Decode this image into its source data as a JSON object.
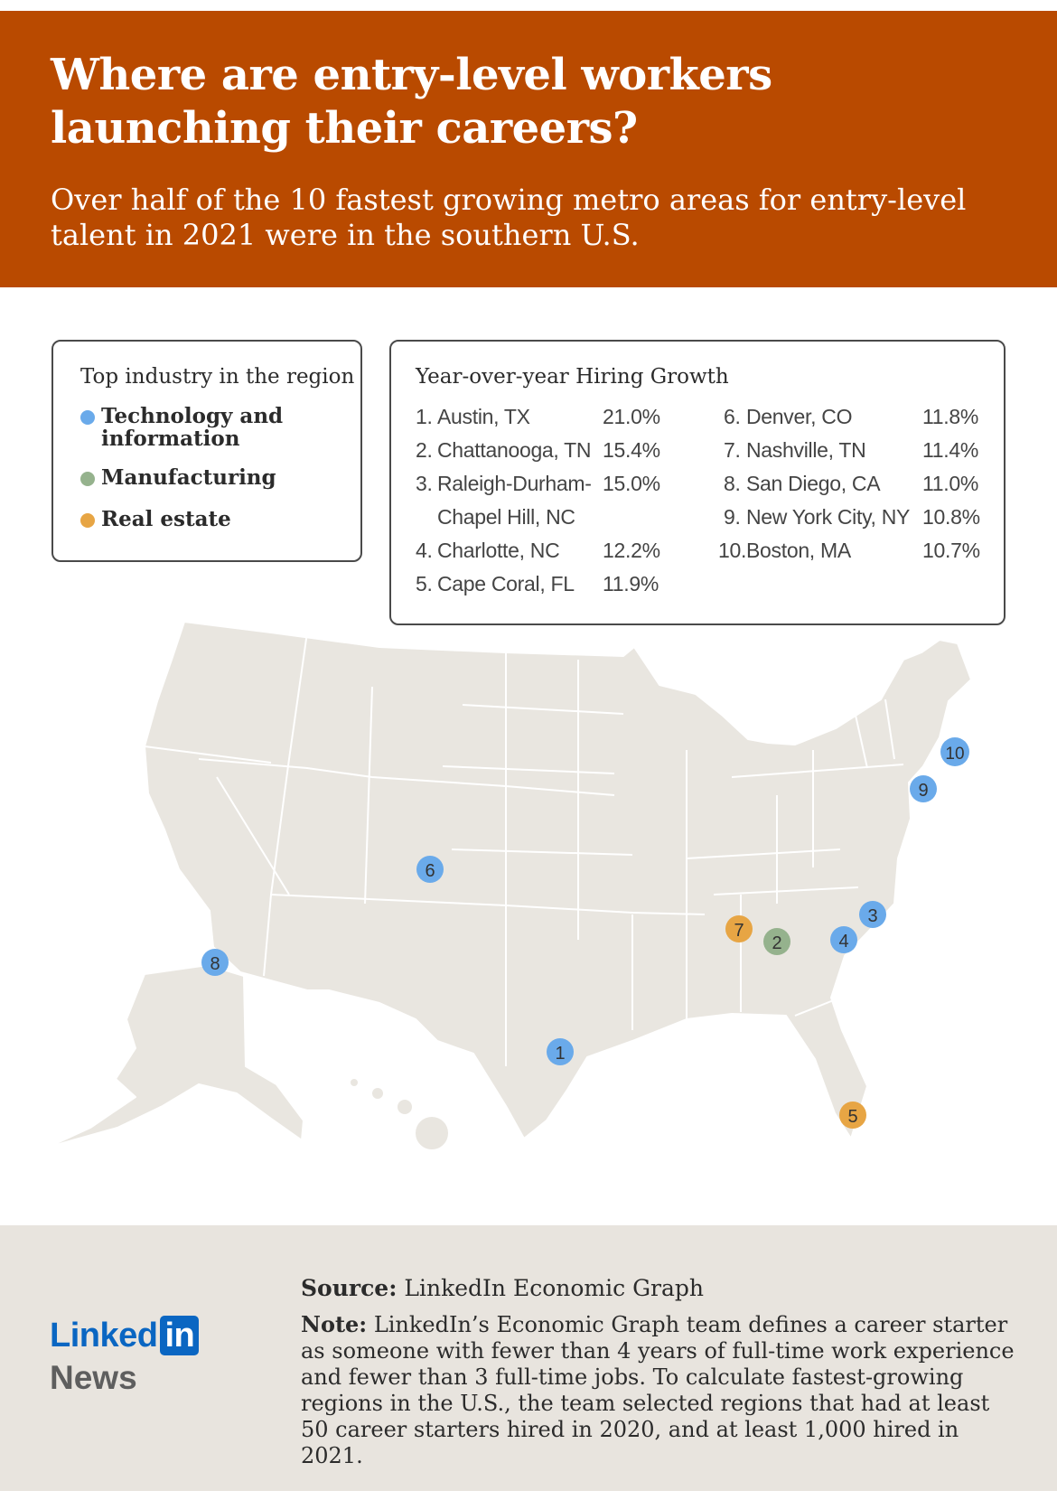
{
  "header": {
    "title": "Where are entry-level workers launching their careers?",
    "subtitle": "Over half of the 10 fastest growing metro areas for entry-level talent in 2021 were in the southern U.S."
  },
  "legend": {
    "title": "Top industry in the region",
    "items": [
      {
        "label": "Technology and information",
        "color": "#6aaaea"
      },
      {
        "label": "Manufacturing",
        "color": "#95b28d"
      },
      {
        "label": "Real estate",
        "color": "#e7a544"
      }
    ]
  },
  "growth_table": {
    "title": "Year-over-year Hiring Growth",
    "rows": [
      {
        "rank": "1.",
        "city": "Austin, TX",
        "growth": "21.0%"
      },
      {
        "rank": "2.",
        "city": "Chattanooga, TN",
        "growth": "15.4%"
      },
      {
        "rank": "3.",
        "city": "Raleigh-Durham-",
        "city2": "Chapel Hill, NC",
        "growth": "15.0%"
      },
      {
        "rank": "4.",
        "city": "Charlotte, NC",
        "growth": "12.2%"
      },
      {
        "rank": "5.",
        "city": "Cape Coral, FL",
        "growth": "11.9%"
      },
      {
        "rank": "6.",
        "city": "Denver, CO",
        "growth": "11.8%"
      },
      {
        "rank": "7.",
        "city": "Nashville, TN",
        "growth": "11.4%"
      },
      {
        "rank": "8.",
        "city": "San Diego, CA",
        "growth": "11.0%"
      },
      {
        "rank": "9.",
        "city": "New York City, NY",
        "growth": "10.8%"
      },
      {
        "rank": "10.",
        "city": "Boston, MA",
        "growth": "10.7%"
      }
    ]
  },
  "map": {
    "markers": [
      {
        "label": "1",
        "city": "Austin, TX",
        "industry": "Technology and information",
        "color": "#6aaaea"
      },
      {
        "label": "2",
        "city": "Chattanooga, TN",
        "industry": "Manufacturing",
        "color": "#95b28d"
      },
      {
        "label": "3",
        "city": "Raleigh-Durham-Chapel Hill, NC",
        "industry": "Technology and information",
        "color": "#6aaaea"
      },
      {
        "label": "4",
        "city": "Charlotte, NC",
        "industry": "Technology and information",
        "color": "#6aaaea"
      },
      {
        "label": "5",
        "city": "Cape Coral, FL",
        "industry": "Real estate",
        "color": "#e7a544"
      },
      {
        "label": "6",
        "city": "Denver, CO",
        "industry": "Technology and information",
        "color": "#6aaaea"
      },
      {
        "label": "7",
        "city": "Nashville, TN",
        "industry": "Real estate",
        "color": "#e7a544"
      },
      {
        "label": "8",
        "city": "San Diego, CA",
        "industry": "Technology and information",
        "color": "#6aaaea"
      },
      {
        "label": "9",
        "city": "New York City, NY",
        "industry": "Technology and information",
        "color": "#6aaaea"
      },
      {
        "label": "10",
        "city": "Boston, MA",
        "industry": "Technology and information",
        "color": "#6aaaea"
      }
    ],
    "land_color": "#e9e6e0",
    "border_color": "#ffffff"
  },
  "footer": {
    "source_label": "Source:",
    "source_text": "LinkedIn Economic Graph",
    "note_label": "Note:",
    "note_text": "LinkedIn’s Economic Graph team defines a career starter as someone with fewer than 4 years of full-time work experience and fewer than 3 full-time jobs. To calculate fastest-growing regions in the U.S., the team selected regions that had at least 50 career starters hired in 2020, and at least 1,000 hired in 2021.",
    "logo_linked": "Linked",
    "logo_in": "in",
    "logo_news": "News",
    "brand_color": "#0a66c2"
  }
}
